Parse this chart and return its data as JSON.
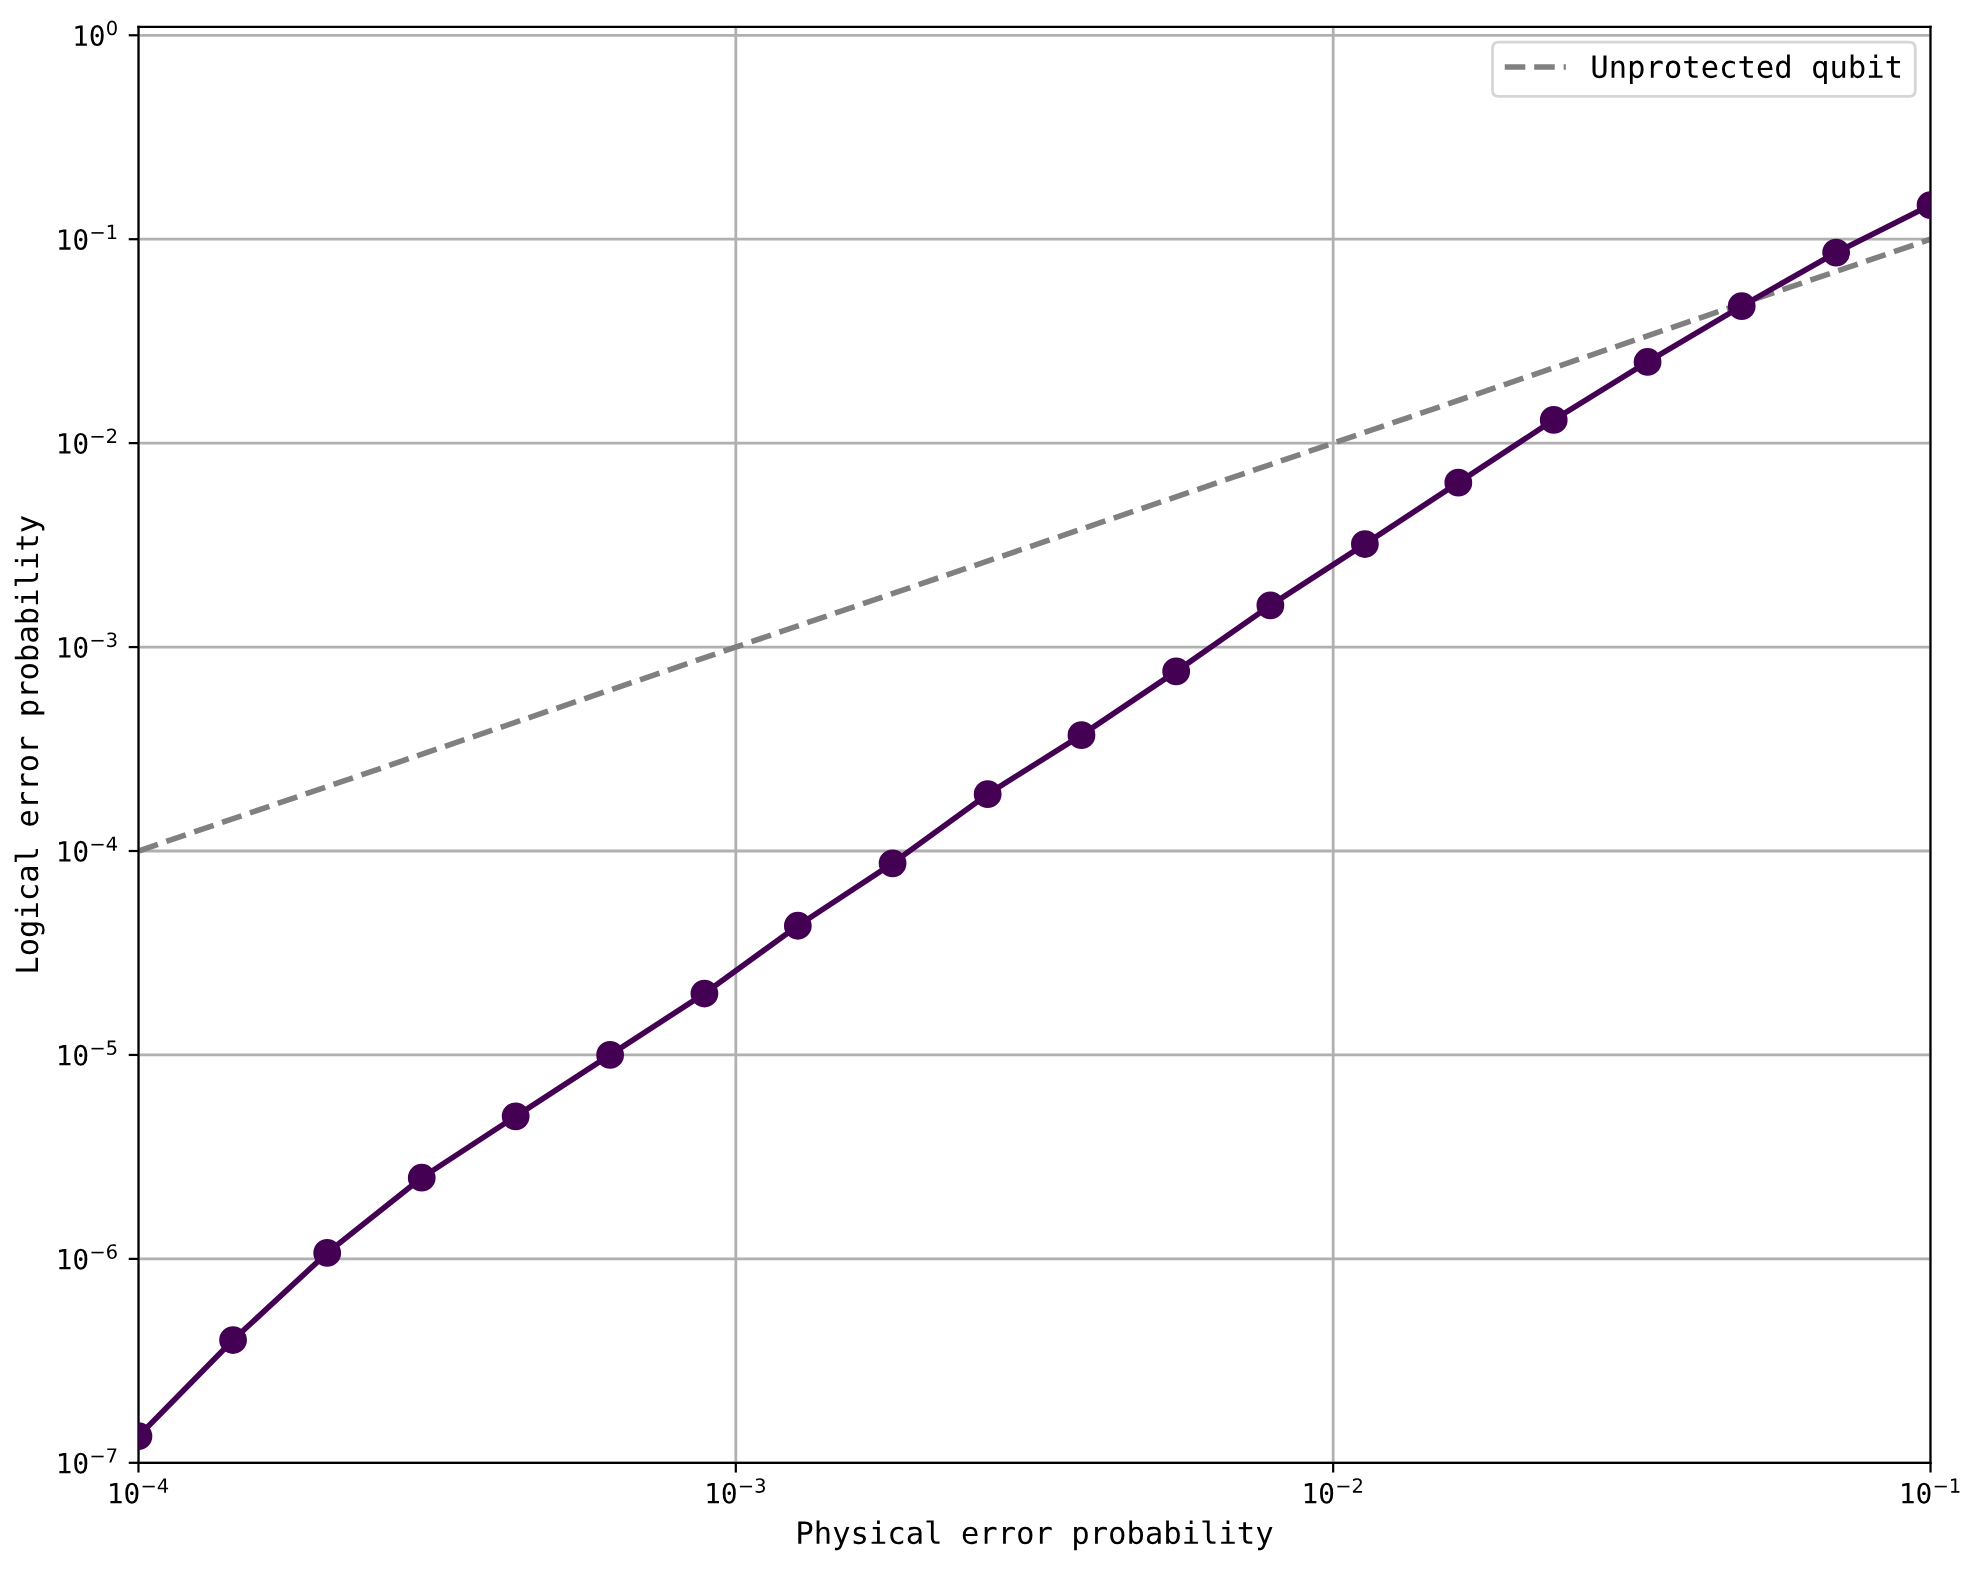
{
  "chart_data": {
    "type": "line",
    "xlabel": "Physical error probability",
    "ylabel": "Logical error probability",
    "log": "xy",
    "grid": true,
    "legend": "top right",
    "xlim": [
      0.0001,
      0.1
    ],
    "ylim": [
      1e-07,
      1.1
    ],
    "xticks": [
      {
        "value": 0.0001,
        "label": "10$^{−4}$"
      },
      {
        "value": 0.001,
        "label": "10$^{−3}$"
      },
      {
        "value": 0.01,
        "label": "10$^{−2}$"
      },
      {
        "value": 0.1,
        "label": "10$^{−1}$"
      }
    ],
    "yticks": [
      {
        "value": 1e-07,
        "label": "10$^{−7}$"
      },
      {
        "value": 1e-06,
        "label": "10$^{−6}$"
      },
      {
        "value": 1e-05,
        "label": "10$^{−5}$"
      },
      {
        "value": 0.0001,
        "label": "10$^{−4}$"
      },
      {
        "value": 0.001,
        "label": "10$^{−3}$"
      },
      {
        "value": 0.01,
        "label": "10$^{−2}$"
      },
      {
        "value": 0.1,
        "label": "10$^{−1}$"
      },
      {
        "value": 1,
        "label": "10$^{0}$"
      }
    ],
    "series": [
      {
        "color": "#440154",
        "marker": "circle",
        "line_style": "solid",
        "x": [
          0.0001,
          0.000144,
          0.000207,
          0.000298,
          0.000428,
          0.000616,
          0.000886,
          0.00127,
          0.00183,
          0.00264,
          0.00379,
          0.00546,
          0.00785,
          0.0113,
          0.0162,
          0.0234,
          0.0336,
          0.0483,
          0.0695,
          0.1
        ],
        "values": [
          1.35e-07,
          4e-07,
          1.07e-06,
          2.5e-06,
          5e-06,
          1e-05,
          2e-05,
          4.3e-05,
          8.7e-05,
          0.00019,
          0.00037,
          0.00076,
          0.0016,
          0.0032,
          0.0064,
          0.013,
          0.025,
          0.047,
          0.086,
          0.147
        ]
      },
      {
        "name": "Unprotected qubit",
        "color": "#808080",
        "marker": "none",
        "line_style": "dashed",
        "x": [
          0.0001,
          0.1
        ],
        "values": [
          0.0001,
          0.1
        ]
      }
    ]
  }
}
